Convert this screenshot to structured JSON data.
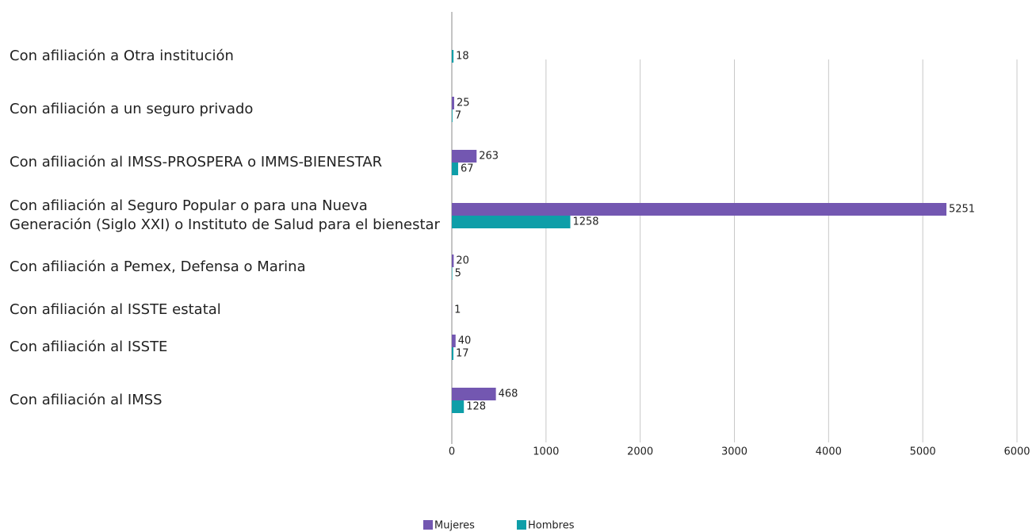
{
  "chart_data": {
    "type": "bar",
    "orientation": "horizontal",
    "categories": [
      "Con afiliación a Otra institución",
      "Con afiliación a un seguro privado",
      "Con afiliación al IMSS-PROSPERA o IMMS-BIENESTAR",
      "Con afiliación al Seguro Popular o para una Nueva Generación (Siglo XXI) o Instituto de Salud para el bienestar",
      "Con afiliación a Pemex, Defensa o Marina",
      "Con afiliación al ISSTE estatal",
      "Con afiliación al ISSTE",
      "Con afiliación al IMSS"
    ],
    "series": [
      {
        "name": "Mujeres",
        "color": "#7357b1",
        "values": [
          null,
          25,
          263,
          5251,
          20,
          1,
          40,
          468
        ]
      },
      {
        "name": "Hombres",
        "color": "#0e9ea8",
        "values": [
          18,
          7,
          67,
          1258,
          5,
          null,
          17,
          128
        ]
      }
    ],
    "xlim": [
      0,
      6000
    ],
    "xticks": [
      0,
      1000,
      2000,
      3000,
      4000,
      5000,
      6000
    ],
    "grid": true,
    "legend": "bottom"
  }
}
